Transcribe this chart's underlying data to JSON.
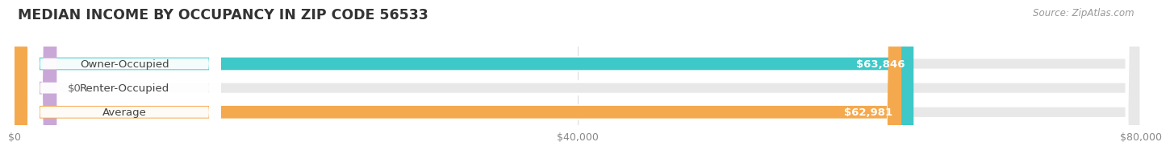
{
  "title": "MEDIAN INCOME BY OCCUPANCY IN ZIP CODE 56533",
  "source": "Source: ZipAtlas.com",
  "categories": [
    "Owner-Occupied",
    "Renter-Occupied",
    "Average"
  ],
  "values": [
    63846,
    0,
    62981
  ],
  "bar_colors": [
    "#3ec8c8",
    "#c9a8d8",
    "#f5a94e"
  ],
  "value_labels": [
    "$63,846",
    "$0",
    "$62,981"
  ],
  "xlim": [
    0,
    80000
  ],
  "xticks": [
    0,
    40000,
    80000
  ],
  "xtick_labels": [
    "$0",
    "$40,000",
    "$80,000"
  ],
  "bg_color": "#ffffff",
  "bar_bg_color": "#e8e8e8",
  "title_fontsize": 12.5,
  "source_fontsize": 8.5,
  "label_fontsize": 9.5,
  "value_fontsize": 9.5,
  "bar_height": 0.52,
  "renter_small_value": 3000
}
